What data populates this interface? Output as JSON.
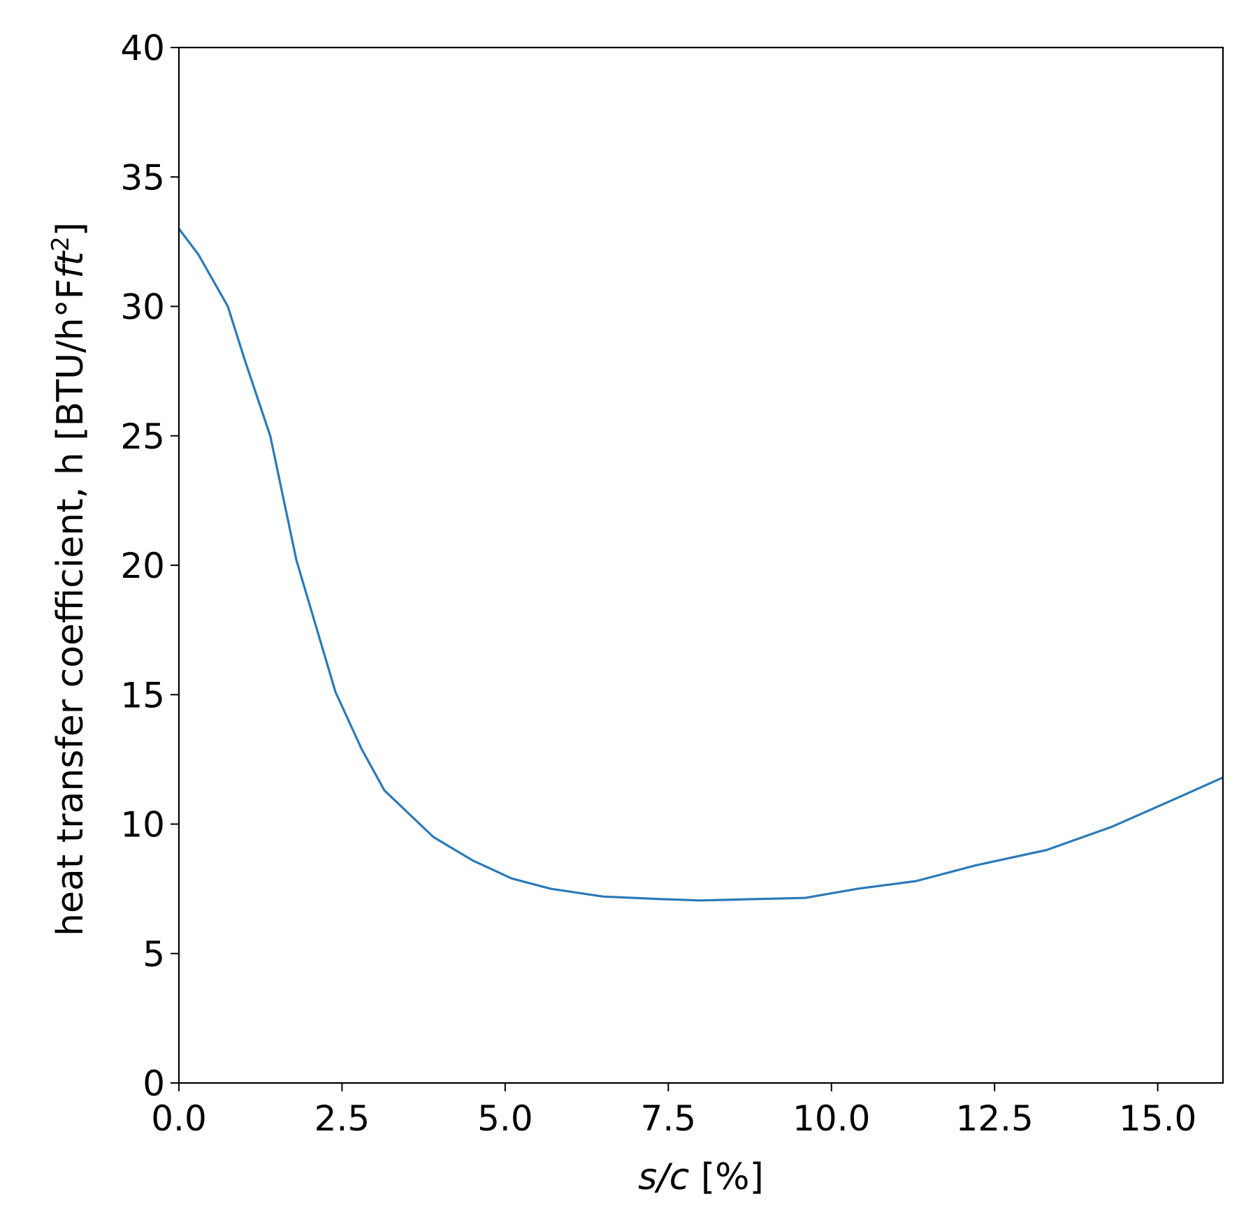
{
  "chart_data": {
    "type": "line",
    "title": "",
    "xlabel": {
      "italic": "s/c",
      "rest": " [%]"
    },
    "ylabel": {
      "main": "heat transfer coefficient, h [BTU/h°F",
      "italic": "ft",
      "sup": "2",
      "close": "]"
    },
    "xlim": [
      0,
      16
    ],
    "ylim": [
      0,
      40
    ],
    "xticks": [
      0.0,
      2.5,
      5.0,
      7.5,
      10.0,
      12.5,
      15.0
    ],
    "xtick_labels": [
      "0.0",
      "2.5",
      "5.0",
      "7.5",
      "10.0",
      "12.5",
      "15.0"
    ],
    "yticks": [
      0,
      5,
      10,
      15,
      20,
      25,
      30,
      35,
      40
    ],
    "ytick_labels": [
      "0",
      "5",
      "10",
      "15",
      "20",
      "25",
      "30",
      "35",
      "40"
    ],
    "grid": false,
    "series": [
      {
        "color": "#2a7ab8",
        "x": [
          0.0,
          0.3,
          0.75,
          1.0,
          1.4,
          1.8,
          2.4,
          2.8,
          3.15,
          3.9,
          4.5,
          5.1,
          5.7,
          6.5,
          7.4,
          8.0,
          8.8,
          9.6,
          10.4,
          11.3,
          12.2,
          13.3,
          14.3,
          15.2,
          16.0
        ],
        "y": [
          33.0,
          32.0,
          30.0,
          28.0,
          25.0,
          20.2,
          15.1,
          12.9,
          11.3,
          9.5,
          8.6,
          7.9,
          7.5,
          7.2,
          7.1,
          7.05,
          7.1,
          7.15,
          7.5,
          7.8,
          8.4,
          9.0,
          9.9,
          10.9,
          11.8
        ]
      }
    ]
  }
}
